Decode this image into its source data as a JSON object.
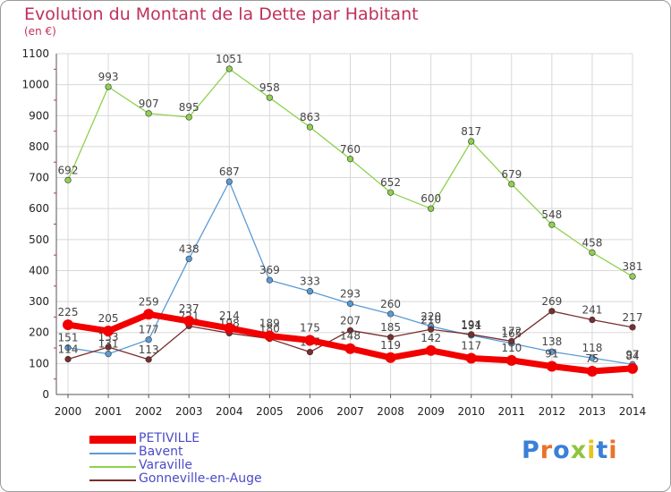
{
  "title": "Evolution du Montant de la Dette par Habitant",
  "unit": "(en €)",
  "logo": "Proxiti",
  "colors": {
    "title": "#c0305a",
    "grid": "#d8d8d8",
    "axis": "#555555",
    "legend_text": "#4b4bc8"
  },
  "chart_data": {
    "type": "line",
    "title": "Evolution du Montant de la Dette par Habitant",
    "ylabel": "(en €)",
    "xlabel": "",
    "x": [
      "2000",
      "2001",
      "2002",
      "2003",
      "2004",
      "2005",
      "2006",
      "2007",
      "2008",
      "2009",
      "2010",
      "2011",
      "2012",
      "2013",
      "2014"
    ],
    "ylim": [
      0,
      1100
    ],
    "yticks": [
      0,
      100,
      200,
      300,
      400,
      500,
      600,
      700,
      800,
      900,
      1000,
      1100
    ],
    "grid": true,
    "legend_position": "bottom-left",
    "series": [
      {
        "name": "Varaville",
        "color": "#8fd14f",
        "values": [
          692,
          993,
          907,
          895,
          1051,
          958,
          863,
          760,
          652,
          600,
          817,
          679,
          548,
          458,
          381
        ]
      },
      {
        "name": "Bavent",
        "color": "#5b9bd5",
        "values": [
          151,
          131,
          177,
          438,
          687,
          369,
          333,
          293,
          260,
          220,
          191,
          165,
          138,
          118,
          97
        ]
      },
      {
        "name": "Gonneville-en-Auge",
        "color": "#7b2d2d",
        "values": [
          114,
          153,
          113,
          221,
          198,
          180,
          137,
          207,
          185,
          210,
          194,
          172,
          269,
          241,
          217
        ]
      },
      {
        "name": "PETIVILLE",
        "color": "#f20000",
        "values": [
          225,
          205,
          259,
          237,
          214,
          189,
          175,
          148,
          119,
          142,
          117,
          110,
          91,
          75,
          84
        ]
      }
    ]
  }
}
